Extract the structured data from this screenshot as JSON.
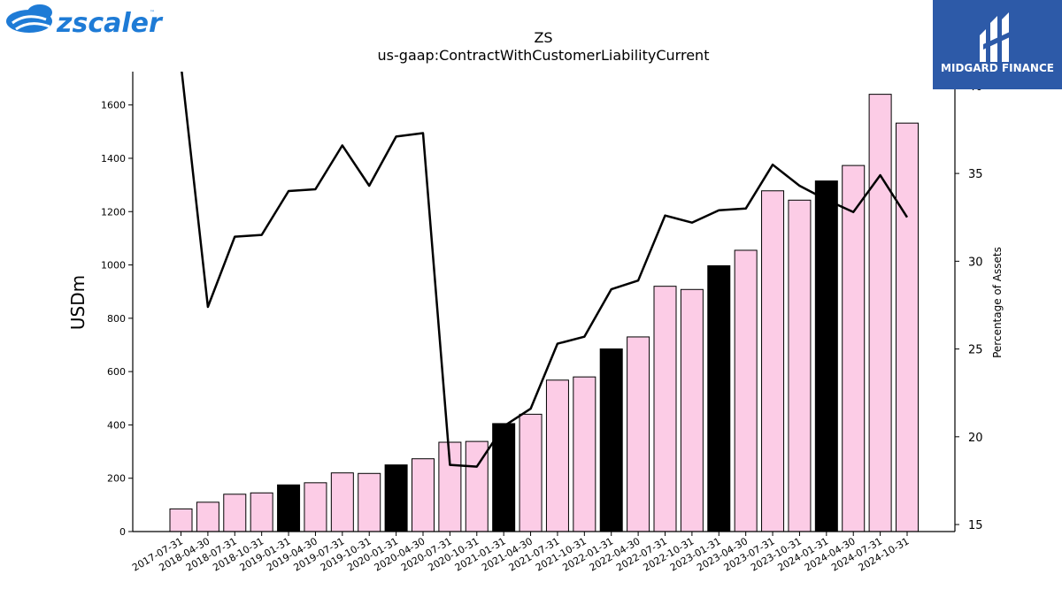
{
  "title": "ZS",
  "subtitle": "us-gaap:ContractWithCustomerLiabilityCurrent",
  "branding": {
    "left_logo_text": "zscaler",
    "left_logo_tm": "™",
    "right_logo_text": "MIDGARD FINANCE",
    "left_logo_color": "#1e7bd6",
    "right_logo_bg": "#2d5aa8"
  },
  "chart_data": {
    "type": "bar",
    "categories": [
      "2017-07-31",
      "2018-04-30",
      "2018-07-31",
      "2018-10-31",
      "2019-01-31",
      "2019-04-30",
      "2019-07-31",
      "2019-10-31",
      "2020-01-31",
      "2020-04-30",
      "2020-07-31",
      "2020-10-31",
      "2021-01-31",
      "2021-04-30",
      "2021-07-31",
      "2021-10-31",
      "2022-01-31",
      "2022-04-30",
      "2022-07-31",
      "2022-10-31",
      "2023-01-31",
      "2023-04-30",
      "2023-07-31",
      "2023-10-31",
      "2024-01-31",
      "2024-04-30",
      "2024-07-31",
      "2024-10-31"
    ],
    "ylabel": "USDm",
    "y2label": "Percentage of Assets",
    "ylim": [
      0,
      1725
    ],
    "y2lim": [
      14.6,
      40.8
    ],
    "yticks": [
      0,
      200,
      400,
      600,
      800,
      1000,
      1200,
      1400,
      1600
    ],
    "y2ticks": [
      15,
      20,
      25,
      30,
      35,
      40
    ],
    "grid": false,
    "colors": {
      "bar_default": "#fccce6",
      "bar_highlight": "#000000",
      "bar_edge": "#000000",
      "line": "#000000"
    },
    "series": [
      {
        "type": "bar",
        "axis": "left",
        "values": [
          85,
          110,
          140,
          145,
          175,
          183,
          220,
          218,
          250,
          273,
          335,
          338,
          405,
          440,
          568,
          580,
          685,
          730,
          920,
          908,
          997,
          1055,
          1278,
          1243,
          1315,
          1373,
          1640,
          1532
        ],
        "highlight": [
          false,
          false,
          false,
          false,
          true,
          false,
          false,
          false,
          true,
          false,
          false,
          false,
          true,
          false,
          false,
          false,
          true,
          false,
          false,
          false,
          true,
          false,
          false,
          false,
          true,
          false,
          false,
          false
        ]
      },
      {
        "type": "line",
        "axis": "right",
        "values": [
          41.2,
          27.4,
          31.4,
          31.5,
          34.0,
          34.1,
          36.6,
          34.3,
          37.1,
          37.3,
          18.4,
          18.3,
          20.6,
          21.6,
          25.3,
          25.7,
          28.4,
          28.9,
          32.6,
          32.2,
          32.9,
          33.0,
          35.5,
          34.3,
          33.5,
          32.8,
          34.9,
          32.5
        ]
      }
    ]
  }
}
